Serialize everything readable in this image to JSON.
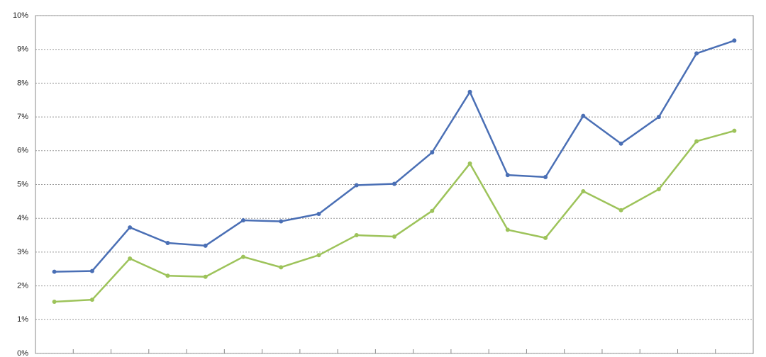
{
  "chart_data": {
    "type": "line",
    "categories": [
      null,
      null,
      null,
      null,
      null,
      null,
      null,
      null,
      null,
      null,
      null,
      null,
      null,
      null,
      null,
      null,
      null,
      null,
      null
    ],
    "series": [
      {
        "color": "#4a6fb5",
        "values": [
          2.42,
          2.44,
          3.73,
          3.27,
          3.19,
          3.94,
          3.91,
          4.13,
          4.98,
          5.02,
          5.95,
          7.74,
          5.28,
          5.22,
          7.03,
          6.21,
          7.0,
          8.88,
          9.26
        ]
      },
      {
        "color": "#9dc35a",
        "values": [
          1.53,
          1.59,
          2.81,
          2.3,
          2.27,
          2.86,
          2.55,
          2.91,
          3.5,
          3.46,
          4.22,
          5.62,
          3.66,
          3.42,
          4.8,
          4.24,
          4.86,
          6.28,
          6.59
        ]
      }
    ],
    "ylim": [
      0,
      10
    ],
    "yticks": [
      {
        "value": 0,
        "label": "0%"
      },
      {
        "value": 1,
        "label": "1%"
      },
      {
        "value": 2,
        "label": "2%"
      },
      {
        "value": 3,
        "label": "3%"
      },
      {
        "value": 4,
        "label": "4%"
      },
      {
        "value": 5,
        "label": "5%"
      },
      {
        "value": 6,
        "label": "6%"
      },
      {
        "value": 7,
        "label": "7%"
      },
      {
        "value": 8,
        "label": "8%"
      },
      {
        "value": 9,
        "label": "9%"
      },
      {
        "value": 10,
        "label": "10%"
      }
    ],
    "grid": true
  }
}
